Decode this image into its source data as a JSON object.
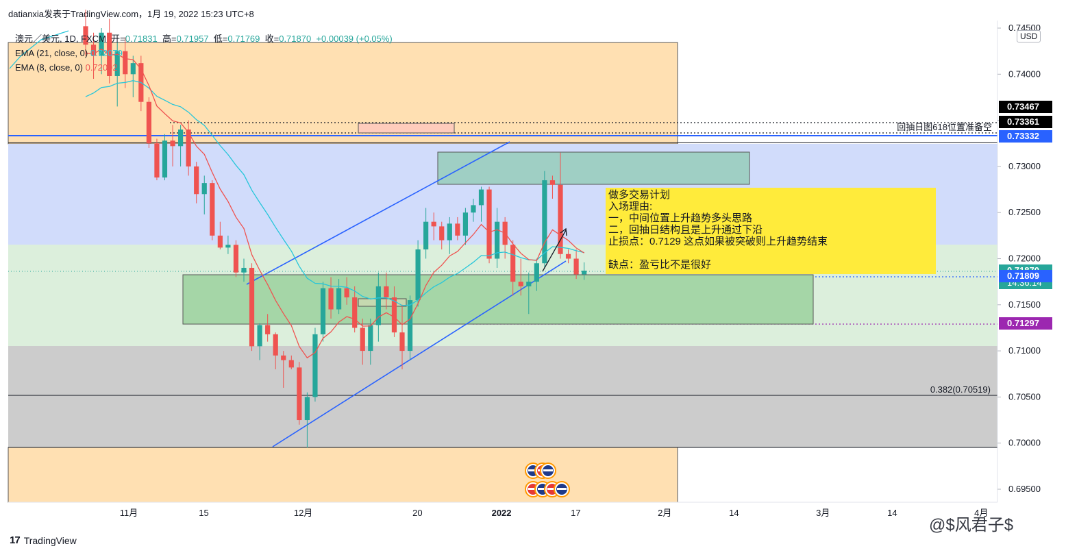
{
  "header": {
    "author_line": "datianxia发表于TradingView.com，1月 19, 2022 15:23 UTC+8"
  },
  "legend": {
    "symbol": "澳元／美元, 1D, FXCM",
    "open_label": "开=",
    "open": "0.71831",
    "high_label": "高=",
    "high": "0.71957",
    "low_label": "低=",
    "low": "0.71769",
    "close_label": "收=",
    "close": "0.71870",
    "change": "+0.00039 (+0.05%)",
    "ema21_label": "EMA (21, close, 0)",
    "ema21_value": "0.72079",
    "ema8_label": "EMA (8, close, 0)",
    "ema8_value": "0.72092"
  },
  "currency": "USD",
  "plan": {
    "lines": [
      "做多交易计划",
      "入场理由:",
      "一，中间位置上升趋势多头思路",
      "二，回抽日结构且是上升通过下沿",
      "止损点：0.7129   这点如果被突破则上升趋势结束",
      "",
      "缺点：盈亏比不是很好"
    ]
  },
  "annotations": {
    "retrace_note": "回抽日图618位置准备空",
    "fib_label": "0.382(0.70519)"
  },
  "price_tags": [
    {
      "text": "0.73467",
      "color": "#000000",
      "price": 0.73467
    },
    {
      "text": "0.73361",
      "color": "#000000",
      "price": 0.73361
    },
    {
      "text": "0.73332",
      "color": "#2962ff",
      "price": 0.73332
    },
    {
      "text": "0.71870",
      "color": "#26a69a",
      "price": 0.7187,
      "sub": "14:36:14"
    },
    {
      "text": "0.71809",
      "color": "#2962ff",
      "price": 0.71809
    },
    {
      "text": "0.71297",
      "color": "#9c27b0",
      "price": 0.71297
    }
  ],
  "watermark": "@$风君子$",
  "footer": {
    "brand": "TradingView",
    "mark": "17"
  },
  "chart_data": {
    "type": "candlestick",
    "y_ticks": [
      "0.74500",
      "0.74000",
      "0.73500",
      "0.73000",
      "0.72500",
      "0.72000",
      "0.71500",
      "0.71000",
      "0.70500",
      "0.70000",
      "0.69500"
    ],
    "y_tick_values": [
      0.745,
      0.74,
      0.735,
      0.73,
      0.725,
      0.72,
      0.715,
      0.71,
      0.705,
      0.7,
      0.695
    ],
    "x_ticks": [
      {
        "label": "11月",
        "bar": 5
      },
      {
        "label": "15",
        "bar": 15
      },
      {
        "label": "12月",
        "bar": 27
      },
      {
        "label": "20",
        "bar": 42
      },
      {
        "label": "2022",
        "bar": 52,
        "bold": true
      },
      {
        "label": "17",
        "bar": 62
      },
      {
        "label": "2月",
        "bar": 73
      },
      {
        "label": "14",
        "bar": 82
      },
      {
        "label": "3月",
        "bar": 93
      },
      {
        "label": "14",
        "bar": 102
      },
      {
        "label": "4月",
        "bar": 113
      }
    ],
    "candles": [
      [
        0.7452,
        0.747,
        0.742,
        0.7432
      ],
      [
        0.7432,
        0.7445,
        0.7395,
        0.742
      ],
      [
        0.742,
        0.745,
        0.74,
        0.7445
      ],
      [
        0.7445,
        0.746,
        0.739,
        0.7398
      ],
      [
        0.7398,
        0.7435,
        0.7365,
        0.7425
      ],
      [
        0.7425,
        0.744,
        0.7385,
        0.74
      ],
      [
        0.74,
        0.742,
        0.7375,
        0.7412
      ],
      [
        0.7412,
        0.742,
        0.736,
        0.737
      ],
      [
        0.737,
        0.7375,
        0.732,
        0.7325
      ],
      [
        0.7325,
        0.733,
        0.7285,
        0.7288
      ],
      [
        0.7288,
        0.7335,
        0.7285,
        0.7328
      ],
      [
        0.7328,
        0.7345,
        0.73,
        0.7322
      ],
      [
        0.7322,
        0.7345,
        0.73,
        0.734
      ],
      [
        0.734,
        0.735,
        0.729,
        0.73
      ],
      [
        0.73,
        0.7305,
        0.726,
        0.727
      ],
      [
        0.727,
        0.729,
        0.7248,
        0.7282
      ],
      [
        0.7282,
        0.7285,
        0.722,
        0.7225
      ],
      [
        0.7225,
        0.724,
        0.721,
        0.7212
      ],
      [
        0.7212,
        0.7225,
        0.7205,
        0.7215
      ],
      [
        0.7215,
        0.722,
        0.718,
        0.7185
      ],
      [
        0.7185,
        0.72,
        0.7175,
        0.719
      ],
      [
        0.719,
        0.7195,
        0.71,
        0.7105
      ],
      [
        0.7105,
        0.713,
        0.709,
        0.7128
      ],
      [
        0.7128,
        0.714,
        0.711,
        0.7118
      ],
      [
        0.7118,
        0.712,
        0.708,
        0.7095
      ],
      [
        0.7095,
        0.71,
        0.706,
        0.709
      ],
      [
        0.709,
        0.7095,
        0.708,
        0.7082
      ],
      [
        0.7082,
        0.7088,
        0.702,
        0.7025
      ],
      [
        0.7025,
        0.7055,
        0.6995,
        0.705
      ],
      [
        0.705,
        0.7125,
        0.7045,
        0.7118
      ],
      [
        0.7118,
        0.7175,
        0.711,
        0.7168
      ],
      [
        0.7168,
        0.718,
        0.7135,
        0.7145
      ],
      [
        0.7145,
        0.7178,
        0.714,
        0.7168
      ],
      [
        0.7168,
        0.718,
        0.715,
        0.7158
      ],
      [
        0.7158,
        0.717,
        0.712,
        0.7125
      ],
      [
        0.7125,
        0.7135,
        0.7085,
        0.71
      ],
      [
        0.71,
        0.7135,
        0.7085,
        0.7128
      ],
      [
        0.7128,
        0.7185,
        0.711,
        0.717
      ],
      [
        0.717,
        0.7185,
        0.7145,
        0.7158
      ],
      [
        0.7158,
        0.717,
        0.7115,
        0.712
      ],
      [
        0.712,
        0.715,
        0.708,
        0.71
      ],
      [
        0.71,
        0.716,
        0.709,
        0.7155
      ],
      [
        0.7155,
        0.722,
        0.7148,
        0.721
      ],
      [
        0.721,
        0.7255,
        0.72,
        0.724
      ],
      [
        0.724,
        0.725,
        0.722,
        0.7235
      ],
      [
        0.7235,
        0.724,
        0.721,
        0.722
      ],
      [
        0.722,
        0.7245,
        0.7205,
        0.7238
      ],
      [
        0.7238,
        0.7245,
        0.722,
        0.7225
      ],
      [
        0.7225,
        0.7255,
        0.7215,
        0.725
      ],
      [
        0.725,
        0.7265,
        0.724,
        0.7258
      ],
      [
        0.7258,
        0.7278,
        0.724,
        0.7275
      ],
      [
        0.7275,
        0.7278,
        0.7195,
        0.72
      ],
      [
        0.72,
        0.7255,
        0.719,
        0.724
      ],
      [
        0.724,
        0.7245,
        0.72,
        0.7215
      ],
      [
        0.7215,
        0.722,
        0.716,
        0.7175
      ],
      [
        0.7175,
        0.72,
        0.716,
        0.717
      ],
      [
        0.717,
        0.7185,
        0.714,
        0.7175
      ],
      [
        0.7175,
        0.72,
        0.7165,
        0.7195
      ],
      [
        0.7195,
        0.7295,
        0.719,
        0.7285
      ],
      [
        0.7285,
        0.729,
        0.7265,
        0.728
      ],
      [
        0.728,
        0.7315,
        0.72,
        0.7205
      ],
      [
        0.7205,
        0.721,
        0.7195,
        0.72
      ],
      [
        0.72,
        0.721,
        0.7178,
        0.7183
      ],
      [
        0.7183,
        0.7196,
        0.7177,
        0.7187
      ]
    ]
  }
}
